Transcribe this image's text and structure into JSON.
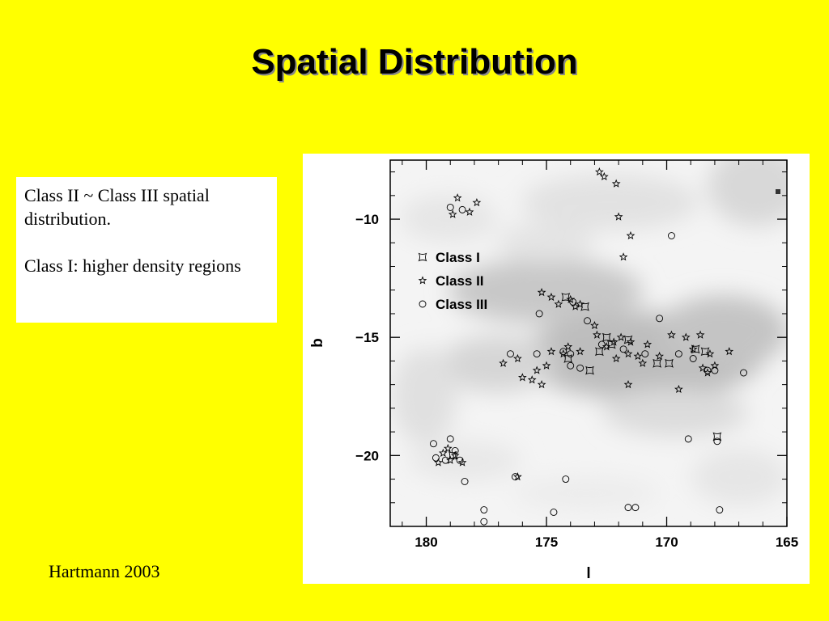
{
  "slide": {
    "title": "Spatial Distribution",
    "text_lines": [
      "Class II ~ Class III spatial distribution.",
      "Class I:  higher density regions"
    ],
    "citation": "Hartmann 2003"
  },
  "colors": {
    "background": "#ffff00",
    "box": "#ffffff"
  },
  "chart_data": {
    "type": "scatter",
    "title": "",
    "xlabel": "l",
    "ylabel": "b",
    "xlim": [
      181.5,
      165
    ],
    "ylim": [
      -23,
      -7.5
    ],
    "x_ticks": [
      180,
      175,
      170,
      165
    ],
    "y_ticks": [
      -10,
      -15,
      -20
    ],
    "grid": false,
    "legend_position": "top-left",
    "background": "grayscale extinction map",
    "series": [
      {
        "name": "Class I",
        "marker": "square-concave",
        "points": [
          [
            178.9,
            -20.0
          ],
          [
            174.2,
            -13.3
          ],
          [
            173.4,
            -13.7
          ],
          [
            172.8,
            -15.6
          ],
          [
            172.5,
            -15.0
          ],
          [
            172.3,
            -15.3
          ],
          [
            171.6,
            -15.1
          ],
          [
            170.4,
            -16.1
          ],
          [
            169.9,
            -16.1
          ],
          [
            168.8,
            -15.5
          ],
          [
            168.4,
            -15.6
          ],
          [
            167.9,
            -19.2
          ],
          [
            173.2,
            -16.4
          ],
          [
            174.1,
            -15.9
          ]
        ]
      },
      {
        "name": "Class II",
        "marker": "star",
        "points": [
          [
            178.7,
            -9.1
          ],
          [
            177.9,
            -9.3
          ],
          [
            178.2,
            -9.7
          ],
          [
            178.9,
            -9.8
          ],
          [
            172.8,
            -8.0
          ],
          [
            172.6,
            -8.2
          ],
          [
            172.1,
            -8.5
          ],
          [
            172.0,
            -9.9
          ],
          [
            171.5,
            -10.7
          ],
          [
            171.8,
            -11.6
          ],
          [
            175.2,
            -13.1
          ],
          [
            174.8,
            -13.3
          ],
          [
            174.5,
            -13.6
          ],
          [
            174.0,
            -13.4
          ],
          [
            173.8,
            -13.7
          ],
          [
            173.6,
            -13.6
          ],
          [
            173.0,
            -14.5
          ],
          [
            172.9,
            -14.9
          ],
          [
            172.5,
            -15.4
          ],
          [
            172.2,
            -15.2
          ],
          [
            171.9,
            -15.0
          ],
          [
            171.5,
            -15.2
          ],
          [
            171.2,
            -15.8
          ],
          [
            170.8,
            -15.3
          ],
          [
            170.3,
            -15.8
          ],
          [
            169.8,
            -14.9
          ],
          [
            169.2,
            -15.0
          ],
          [
            168.9,
            -15.5
          ],
          [
            168.6,
            -14.9
          ],
          [
            168.2,
            -15.7
          ],
          [
            168.0,
            -16.2
          ],
          [
            167.4,
            -15.6
          ],
          [
            169.5,
            -17.2
          ],
          [
            171.6,
            -17.0
          ],
          [
            173.6,
            -15.6
          ],
          [
            174.1,
            -15.4
          ],
          [
            174.3,
            -15.7
          ],
          [
            174.8,
            -15.6
          ],
          [
            175.0,
            -16.2
          ],
          [
            175.4,
            -16.4
          ],
          [
            176.2,
            -15.9
          ],
          [
            176.8,
            -16.1
          ],
          [
            176.0,
            -16.7
          ],
          [
            175.6,
            -16.8
          ],
          [
            175.2,
            -17.0
          ],
          [
            172.1,
            -15.9
          ],
          [
            171.6,
            -15.7
          ],
          [
            171.0,
            -16.1
          ],
          [
            178.8,
            -20.0
          ],
          [
            179.0,
            -20.2
          ],
          [
            179.3,
            -19.9
          ],
          [
            179.5,
            -20.3
          ],
          [
            178.5,
            -20.3
          ],
          [
            179.1,
            -19.7
          ],
          [
            176.2,
            -20.9
          ],
          [
            168.3,
            -16.5
          ],
          [
            168.5,
            -16.3
          ]
        ]
      },
      {
        "name": "Class III",
        "marker": "circle",
        "points": [
          [
            179.0,
            -9.5
          ],
          [
            178.5,
            -9.6
          ],
          [
            169.8,
            -10.7
          ],
          [
            170.3,
            -14.2
          ],
          [
            175.3,
            -14.0
          ],
          [
            173.3,
            -14.3
          ],
          [
            173.9,
            -13.5
          ],
          [
            172.7,
            -15.3
          ],
          [
            171.8,
            -15.5
          ],
          [
            170.9,
            -15.7
          ],
          [
            169.5,
            -15.7
          ],
          [
            168.9,
            -15.9
          ],
          [
            168.3,
            -16.4
          ],
          [
            168.0,
            -16.4
          ],
          [
            166.8,
            -16.5
          ],
          [
            174.3,
            -15.6
          ],
          [
            175.4,
            -15.7
          ],
          [
            174.0,
            -16.2
          ],
          [
            176.5,
            -15.7
          ],
          [
            173.6,
            -16.3
          ],
          [
            169.1,
            -19.3
          ],
          [
            167.9,
            -19.4
          ],
          [
            179.7,
            -19.5
          ],
          [
            179.6,
            -20.1
          ],
          [
            179.2,
            -20.2
          ],
          [
            178.8,
            -19.8
          ],
          [
            178.6,
            -20.2
          ],
          [
            179.0,
            -19.3
          ],
          [
            178.4,
            -21.1
          ],
          [
            176.3,
            -20.9
          ],
          [
            174.2,
            -21.0
          ],
          [
            177.6,
            -22.3
          ],
          [
            174.7,
            -22.4
          ],
          [
            171.6,
            -22.2
          ],
          [
            171.3,
            -22.2
          ],
          [
            167.8,
            -22.3
          ],
          [
            177.6,
            -22.8
          ],
          [
            174.0,
            -15.7
          ]
        ]
      }
    ]
  }
}
